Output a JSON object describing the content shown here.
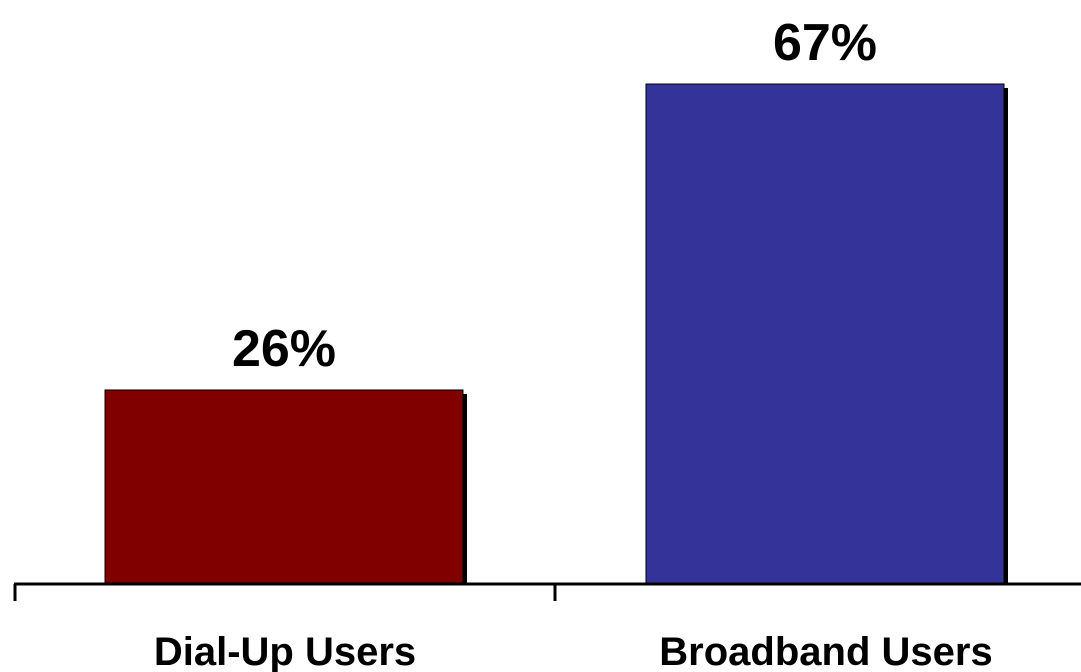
{
  "chart_data": {
    "type": "bar",
    "categories": [
      "Dial-Up Users",
      "Broadband Users"
    ],
    "values": [
      26,
      67
    ],
    "data_labels": [
      "26%",
      "67%"
    ],
    "colors": [
      "#800000",
      "#333399"
    ],
    "shadow_color": "#000000",
    "title": "",
    "xlabel": "",
    "ylabel": "",
    "ylim": [
      0,
      67
    ],
    "grid": false,
    "legend": "none"
  }
}
